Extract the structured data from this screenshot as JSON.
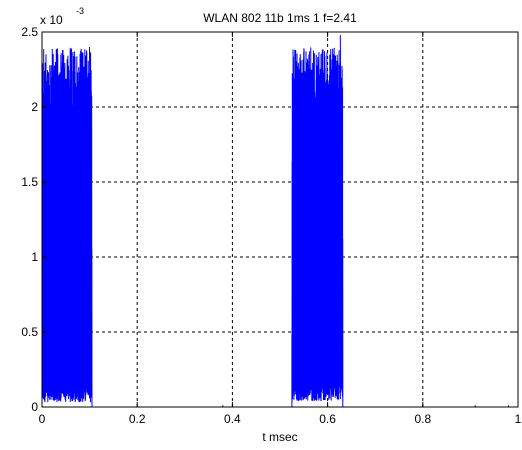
{
  "chart_data": {
    "type": "line",
    "title": "WLAN 802 11b 1ms 1 f=2.41",
    "xlabel": "t msec",
    "ylabel": "",
    "y_multiplier_base": "x 10",
    "y_multiplier_exponent": "-3",
    "xlim": [
      0,
      1
    ],
    "ylim": [
      0,
      2.5
    ],
    "xticks": [
      0,
      0.2,
      0.4,
      0.6,
      0.8,
      1
    ],
    "xtick_labels": [
      "0",
      "0.2",
      "0.4",
      "0.6",
      "0.8",
      "1"
    ],
    "yticks": [
      0,
      0.5,
      1,
      1.5,
      2,
      2.5
    ],
    "ytick_labels": [
      "0",
      "0.5",
      "1",
      "1.5",
      "2",
      "2.5"
    ],
    "grid": true,
    "grid_style": "dashed",
    "line_color": "#0000ff",
    "bursts": [
      {
        "t_start": 0.0,
        "t_end": 0.105,
        "envelope_min": 0.08,
        "envelope_max": 2.4,
        "peak": 2.4
      },
      {
        "t_start": 0.525,
        "t_end": 0.632,
        "envelope_min": 0.1,
        "envelope_max": 2.4,
        "peak": 2.48
      }
    ],
    "baseline": 0.0
  }
}
